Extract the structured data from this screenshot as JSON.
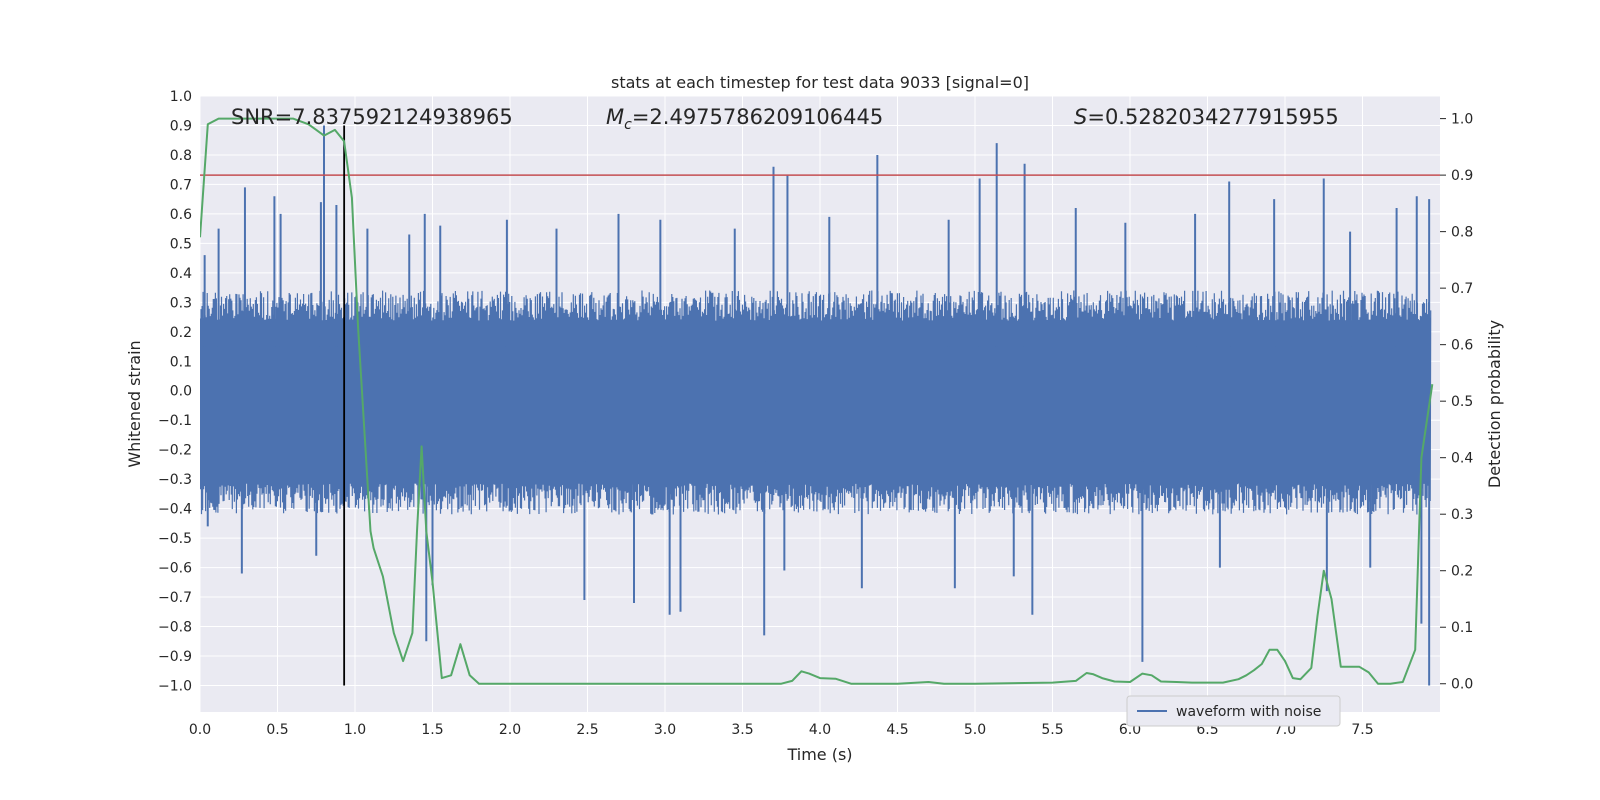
{
  "chart_data": {
    "type": "line",
    "title": "stats at each timestep for test data 9033 [signal=0]",
    "xlabel": "Time (s)",
    "ylabel": "Whitened strain",
    "y2label": "Detection probability",
    "xlim": [
      0.0,
      8.0
    ],
    "ylim": [
      -1.09,
      1.0
    ],
    "y2lim": [
      -0.05,
      1.04
    ],
    "xticks": [
      "0.0",
      "0.5",
      "1.0",
      "1.5",
      "2.0",
      "2.5",
      "3.0",
      "3.5",
      "4.0",
      "4.5",
      "5.0",
      "5.5",
      "6.0",
      "6.5",
      "7.0",
      "7.5"
    ],
    "yticks": [
      "1.0",
      "0.9",
      "0.8",
      "0.7",
      "0.6",
      "0.5",
      "0.4",
      "0.3",
      "0.2",
      "0.1",
      "0.0",
      "-0.1",
      "-0.2",
      "-0.3",
      "-0.4",
      "-0.5",
      "-0.6",
      "-0.7",
      "-0.8",
      "-0.9",
      "-1.0"
    ],
    "y2ticks": [
      "1.0",
      "0.9",
      "0.8",
      "0.7",
      "0.6",
      "0.5",
      "0.4",
      "0.3",
      "0.2",
      "0.1",
      "0.0"
    ],
    "grid": true,
    "legend": {
      "entries": [
        "waveform with noise"
      ],
      "placement": "lower-right"
    },
    "annotations": {
      "snr": "SNR=7.837592124938965",
      "mc_symbol": "M",
      "mc_sub": "c",
      "mc_value": "=2.4975786209106445",
      "s_symbol": "S",
      "s_value": "=0.5282034277915955"
    },
    "threshold": {
      "axis": "y2",
      "value": 0.9,
      "color": "#c44e52"
    },
    "marker_vline": {
      "x": 0.93,
      "ymin": -1.0,
      "ymax": 0.9,
      "color": "#000000"
    },
    "series": [
      {
        "name": "waveform with noise",
        "axis": "y",
        "color": "#4c72b0",
        "typical_envelope": [
          -0.42,
          0.34
        ],
        "spikes_up": [
          [
            0.03,
            0.46
          ],
          [
            0.12,
            0.55
          ],
          [
            0.29,
            0.69
          ],
          [
            0.48,
            0.66
          ],
          [
            0.52,
            0.6
          ],
          [
            0.78,
            0.64
          ],
          [
            0.8,
            0.9
          ],
          [
            0.88,
            0.63
          ],
          [
            1.08,
            0.55
          ],
          [
            1.35,
            0.53
          ],
          [
            1.45,
            0.6
          ],
          [
            1.55,
            0.56
          ],
          [
            1.98,
            0.58
          ],
          [
            2.3,
            0.55
          ],
          [
            2.7,
            0.6
          ],
          [
            2.97,
            0.58
          ],
          [
            3.45,
            0.55
          ],
          [
            3.7,
            0.76
          ],
          [
            3.79,
            0.73
          ],
          [
            4.06,
            0.59
          ],
          [
            4.37,
            0.8
          ],
          [
            4.83,
            0.58
          ],
          [
            5.03,
            0.72
          ],
          [
            5.14,
            0.84
          ],
          [
            5.32,
            0.77
          ],
          [
            5.65,
            0.62
          ],
          [
            5.97,
            0.57
          ],
          [
            6.42,
            0.6
          ],
          [
            6.64,
            0.71
          ],
          [
            6.93,
            0.65
          ],
          [
            7.25,
            0.72
          ],
          [
            7.42,
            0.54
          ],
          [
            7.72,
            0.62
          ],
          [
            7.85,
            0.66
          ],
          [
            7.93,
            0.65
          ]
        ],
        "spikes_down": [
          [
            0.05,
            -0.46
          ],
          [
            0.27,
            -0.62
          ],
          [
            0.75,
            -0.56
          ],
          [
            1.46,
            -0.85
          ],
          [
            1.5,
            -0.66
          ],
          [
            2.48,
            -0.71
          ],
          [
            2.8,
            -0.72
          ],
          [
            3.03,
            -0.76
          ],
          [
            3.1,
            -0.75
          ],
          [
            3.64,
            -0.83
          ],
          [
            3.77,
            -0.61
          ],
          [
            4.27,
            -0.67
          ],
          [
            4.87,
            -0.67
          ],
          [
            5.25,
            -0.63
          ],
          [
            5.37,
            -0.76
          ],
          [
            6.08,
            -0.92
          ],
          [
            6.58,
            -0.6
          ],
          [
            7.27,
            -0.68
          ],
          [
            7.55,
            -0.6
          ],
          [
            7.88,
            -0.79
          ],
          [
            7.93,
            -1.0
          ]
        ]
      },
      {
        "name": "",
        "axis": "y2",
        "color": "#55a868",
        "x": [
          0.0,
          0.05,
          0.12,
          0.2,
          0.3,
          0.4,
          0.5,
          0.6,
          0.7,
          0.75,
          0.8,
          0.87,
          0.93,
          0.98,
          1.02,
          1.06,
          1.1,
          1.12,
          1.18,
          1.25,
          1.31,
          1.37,
          1.4,
          1.43,
          1.46,
          1.5,
          1.56,
          1.62,
          1.68,
          1.74,
          1.8,
          1.9,
          2.0,
          3.0,
          3.5,
          3.75,
          3.82,
          3.88,
          3.93,
          4.0,
          4.1,
          4.2,
          4.5,
          4.7,
          4.8,
          5.0,
          5.5,
          5.65,
          5.72,
          5.76,
          5.82,
          5.9,
          6.0,
          6.08,
          6.14,
          6.2,
          6.3,
          6.4,
          6.6,
          6.7,
          6.75,
          6.8,
          6.85,
          6.9,
          6.95,
          7.0,
          7.05,
          7.1,
          7.17,
          7.21,
          7.25,
          7.3,
          7.36,
          7.43,
          7.48,
          7.54,
          7.6,
          7.68,
          7.76,
          7.84,
          7.88,
          7.95
        ],
        "y": [
          0.79,
          0.99,
          1.0,
          1.0,
          1.0,
          1.0,
          1.0,
          1.0,
          0.99,
          0.98,
          0.97,
          0.98,
          0.96,
          0.86,
          0.63,
          0.45,
          0.27,
          0.24,
          0.19,
          0.09,
          0.04,
          0.09,
          0.27,
          0.42,
          0.27,
          0.18,
          0.01,
          0.015,
          0.07,
          0.015,
          0.0,
          0.0,
          0.0,
          0.0,
          0.0,
          0.0,
          0.005,
          0.022,
          0.018,
          0.01,
          0.009,
          0.0,
          0.0,
          0.003,
          0.0,
          0.0,
          0.002,
          0.005,
          0.019,
          0.017,
          0.01,
          0.004,
          0.003,
          0.018,
          0.015,
          0.004,
          0.003,
          0.002,
          0.002,
          0.008,
          0.015,
          0.024,
          0.035,
          0.06,
          0.06,
          0.04,
          0.01,
          0.008,
          0.028,
          0.12,
          0.2,
          0.15,
          0.03,
          0.03,
          0.03,
          0.02,
          0.0,
          0.0,
          0.003,
          0.06,
          0.4,
          0.53
        ]
      }
    ]
  }
}
